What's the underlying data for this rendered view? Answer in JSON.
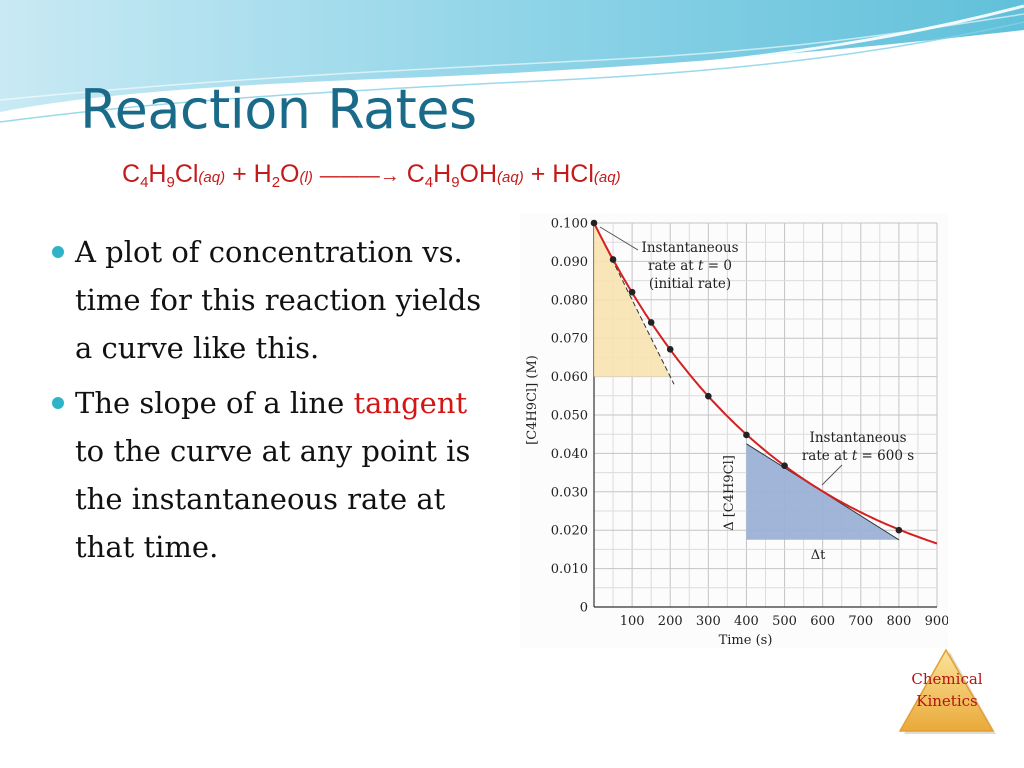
{
  "slide": {
    "title": "Reaction Rates",
    "equation": {
      "reactant1": {
        "c": "C",
        "n1": "4",
        "h": "H",
        "n2": "9",
        "rest": "Cl",
        "state": "aq"
      },
      "plus1": "+",
      "reactant2": {
        "h": "H",
        "n1": "2",
        "o": "O",
        "state": "l"
      },
      "arrow": "———→",
      "product1": {
        "c": "C",
        "n1": "4",
        "h": "H",
        "n2": "9",
        "rest": "OH",
        "state": "aq"
      },
      "plus2": "+",
      "product2": {
        "formula": "HCl",
        "state": "aq"
      }
    },
    "bullets": [
      {
        "text": "A plot of concentration vs. time for this reaction yields a curve like this."
      },
      {
        "before": "The slope of a line ",
        "highlight": "tangent",
        "after": " to the curve at any point is the instantaneous rate at that time."
      }
    ],
    "logo": {
      "line1": "Chemical",
      "line2": "Kinetics"
    },
    "colors": {
      "title": "#1a6b8a",
      "equation": "#c41a1a",
      "highlight": "#d41515",
      "bullet": "#2eb3c8",
      "curve": "#d42020",
      "triangle_initial": "#f7e2b0",
      "triangle_600": "#9bb1d6"
    }
  },
  "chart_data": {
    "type": "line",
    "xlabel": "Time (s)",
    "ylabel": "[C4H9Cl] (M)",
    "xlim": [
      0,
      900
    ],
    "ylim": [
      0,
      0.1
    ],
    "x_ticks": [
      "100",
      "200",
      "300",
      "400",
      "500",
      "600",
      "700",
      "800",
      "900"
    ],
    "y_ticks": [
      "0",
      "0.010",
      "0.020",
      "0.030",
      "0.040",
      "0.050",
      "0.060",
      "0.070",
      "0.080",
      "0.090",
      "0.100"
    ],
    "grid": true,
    "points": [
      {
        "x": 0,
        "y": 0.1
      },
      {
        "x": 50,
        "y": 0.0905
      },
      {
        "x": 100,
        "y": 0.082
      },
      {
        "x": 150,
        "y": 0.0741
      },
      {
        "x": 200,
        "y": 0.0671
      },
      {
        "x": 300,
        "y": 0.0549
      },
      {
        "x": 400,
        "y": 0.0448
      },
      {
        "x": 500,
        "y": 0.0368
      },
      {
        "x": 800,
        "y": 0.02
      }
    ],
    "curve_k": 0.002,
    "curve_x_max": 900,
    "tangent_initial": {
      "x0": 0,
      "y0": 0.1,
      "x1": 210,
      "y1": 0.058
    },
    "triangle_initial": {
      "x0": 0,
      "y0": 0.1,
      "x1": 200,
      "y1": 0.06
    },
    "tangent_600": {
      "x0": 400,
      "y0": 0.0425,
      "x1": 800,
      "y1": 0.0175
    },
    "triangle_600": {
      "x0": 400,
      "y0": 0.0425,
      "x1": 800,
      "y1": 0.0175
    },
    "annotations": {
      "initial": {
        "line1": "Instantaneous",
        "line2_pre": "rate at ",
        "line2_var": "t",
        "line2_post": " = 0",
        "line3": "(initial rate)"
      },
      "at600": {
        "line1": "Instantaneous",
        "line2_pre": "rate at ",
        "line2_var": "t",
        "line2_post": " = 600 s"
      },
      "delta_conc": "Δ [C4H9Cl]",
      "delta_t": "Δt"
    }
  }
}
